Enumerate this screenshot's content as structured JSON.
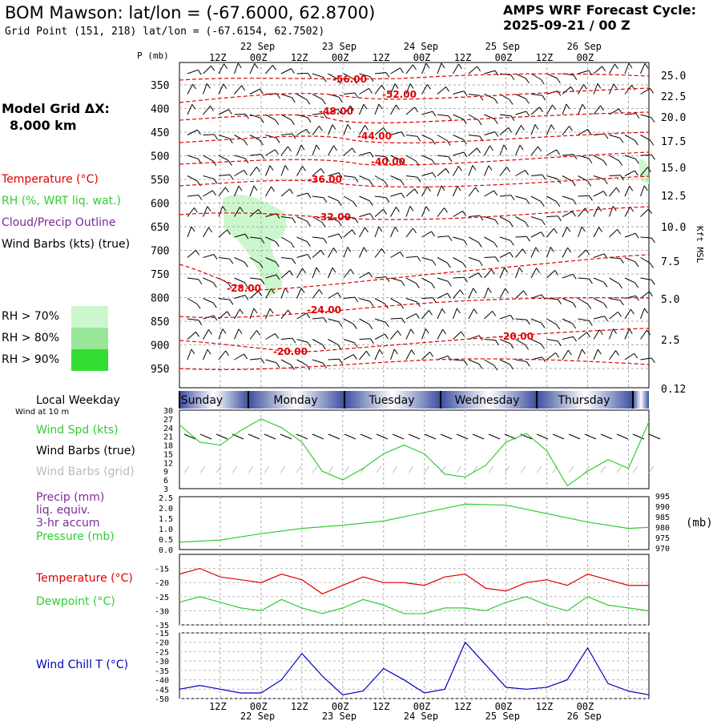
{
  "header": {
    "title": "BOM Mawson:  lat/lon = (-67.6000, 62.8700)",
    "grid_point": "Grid Point (151, 218) lat/lon = (-67.6154, 62.7502)",
    "cycle_line1": "AMPS WRF Forecast Cycle:",
    "cycle_line2": "2025-09-21 / 00  Z"
  },
  "sidebar": {
    "grid_label": "Model Grid ΔX:",
    "grid_value": "8.000 km",
    "temperature": "Temperature (°C)",
    "rh": "RH (%, WRT liq. wat.)",
    "cloud": "Cloud/Precip Outline",
    "wind": "Wind Barbs (kts) (true)",
    "rh70": "RH > 70%",
    "rh80": "RH > 80%",
    "rh90": "RH > 90%",
    "local_weekday": "Local Weekday",
    "wind_at": "Wind at 10 m",
    "wind_spd": "Wind Spd (kts)",
    "wind_barbs_true": "Wind Barbs (true)",
    "wind_barbs_grid": "Wind Barbs (grid)",
    "precip1": "Precip (mm)",
    "precip2": "liq. equiv.",
    "precip3": "3-hr accum",
    "pressure": "Pressure (mb)",
    "temp2": "Temperature (°C)",
    "dewpoint": "Dewpoint (°C)",
    "windchill": "Wind Chill T (°C)",
    "mb_unit": "(mb)",
    "kft_unit": "Kft MSL",
    "p_unit": "P (mb)"
  },
  "colors": {
    "temperature": "#e00000",
    "rh_green": "#33cc33",
    "cloud_purple": "#7a2a9a",
    "wind_chill": "#0000c0",
    "grid_gray": "#999999",
    "rh70": "#ccf7cc",
    "rh80": "#99e699",
    "rh90": "#33dd33",
    "weekday_bar_dark": "#3a4fa0"
  },
  "chart_data": [
    {
      "type": "line",
      "name": "cross-section",
      "x_time_labels": [
        "12Z",
        "00Z",
        "12Z",
        "00Z",
        "12Z",
        "00Z",
        "12Z",
        "00Z",
        "12Z",
        "00Z"
      ],
      "x_date_labels": [
        "22 Sep",
        "23 Sep",
        "24 Sep",
        "25 Sep",
        "26 Sep"
      ],
      "pressure_ticks": [
        "350",
        "400",
        "450",
        "500",
        "550",
        "600",
        "650",
        "700",
        "750",
        "800",
        "850",
        "900",
        "950"
      ],
      "height_ticks": [
        "25.0",
        "22.5",
        "20.0",
        "17.5",
        "15.0",
        "12.5",
        "10.0",
        "7.5",
        "5.0",
        "2.5",
        "0.12"
      ],
      "temperature_labels": [
        "-56.00",
        "-52.00",
        "-48.00",
        "-44.00",
        "-40.00",
        "-36.00",
        "-32.00",
        "-28.00",
        "-24.00",
        "-20.00",
        "-20.00"
      ]
    },
    {
      "type": "line",
      "name": "wind-speed",
      "weekdays": [
        "Sunday",
        "Monday",
        "Tuesday",
        "Wednesday",
        "Thursday"
      ],
      "yticks": [
        "30",
        "27",
        "24",
        "21",
        "18",
        "15",
        "12",
        "9",
        "6",
        "3"
      ],
      "ylim": [
        3,
        30
      ],
      "x_hours": [
        0,
        6,
        12,
        18,
        24,
        30,
        36,
        42,
        48,
        54,
        60,
        66,
        72,
        78,
        84,
        90,
        96,
        102,
        108,
        114,
        120,
        126,
        132,
        138
      ],
      "values": [
        25,
        19,
        18,
        23,
        27,
        24,
        19,
        9,
        6,
        10,
        15,
        18,
        15,
        8,
        7,
        11,
        19,
        22,
        16,
        4,
        9,
        13,
        10,
        26
      ]
    },
    {
      "type": "line",
      "name": "precip-pressure",
      "yticks_left": [
        "2.5",
        "2.0",
        "1.5",
        "1.0",
        "0.5",
        "0.0"
      ],
      "yticks_right": [
        "995",
        "990",
        "985",
        "980",
        "975",
        "970"
      ],
      "pressure_ylim": [
        970,
        995
      ],
      "x_hours": [
        0,
        12,
        24,
        36,
        48,
        60,
        72,
        84,
        96,
        108,
        120,
        132,
        138
      ],
      "pressure": [
        973.5,
        974.5,
        977.5,
        980,
        981.5,
        983.5,
        987.5,
        991.5,
        991,
        987,
        983,
        980,
        980.5
      ]
    },
    {
      "type": "line",
      "name": "temperature-dewpoint",
      "yticks": [
        "-15",
        "-20",
        "-25",
        "-30",
        "-35"
      ],
      "ylim": [
        -35,
        -10
      ],
      "x_hours": [
        0,
        6,
        12,
        18,
        24,
        30,
        36,
        42,
        48,
        54,
        60,
        66,
        72,
        78,
        84,
        90,
        96,
        102,
        108,
        114,
        120,
        126,
        132,
        138
      ],
      "temperature": [
        -17,
        -15,
        -18,
        -19,
        -20,
        -17,
        -19,
        -24,
        -21,
        -18,
        -20,
        -20,
        -21,
        -18,
        -17,
        -22,
        -23,
        -20,
        -19,
        -21,
        -17,
        -19,
        -21,
        -21
      ],
      "dewpoint": [
        -27,
        -25,
        -27,
        -29,
        -30,
        -26,
        -29,
        -31,
        -29,
        -26,
        -28,
        -31,
        -31,
        -29,
        -29,
        -30,
        -27,
        -25,
        -28,
        -30,
        -25,
        -28,
        -29,
        -30
      ]
    },
    {
      "type": "line",
      "name": "wind-chill",
      "yticks": [
        "-15",
        "-20",
        "-25",
        "-30",
        "-35",
        "-40",
        "-45",
        "-50"
      ],
      "ylim": [
        -50,
        -15
      ],
      "x_hours": [
        0,
        6,
        12,
        18,
        24,
        30,
        36,
        42,
        48,
        54,
        60,
        66,
        72,
        78,
        84,
        90,
        96,
        102,
        108,
        114,
        120,
        126,
        132,
        138
      ],
      "values": [
        -45,
        -43,
        -45,
        -47,
        -47,
        -40,
        -26,
        -38,
        -48,
        -46,
        -34,
        -40,
        -47,
        -45,
        -20,
        -32,
        -44,
        -45,
        -44,
        -40,
        -23,
        -42,
        -46,
        -48
      ],
      "x_time_labels": [
        "12Z",
        "00Z",
        "12Z",
        "00Z",
        "12Z",
        "00Z",
        "12Z",
        "00Z",
        "12Z",
        "00Z"
      ],
      "x_date_labels": [
        "22 Sep",
        "23 Sep",
        "24 Sep",
        "25 Sep",
        "26 Sep"
      ]
    }
  ]
}
